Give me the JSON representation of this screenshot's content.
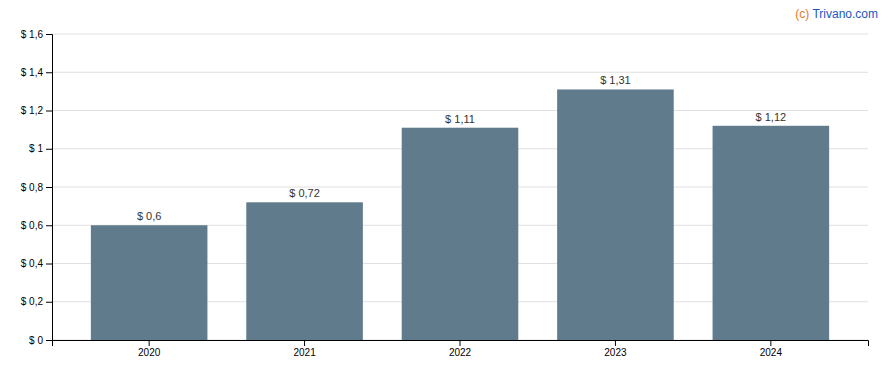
{
  "chart_data": {
    "type": "bar",
    "categories": [
      "2020",
      "2021",
      "2022",
      "2023",
      "2024"
    ],
    "values": [
      0.6,
      0.72,
      1.11,
      1.31,
      1.12
    ],
    "value_labels": [
      "$ 0,6",
      "$ 0,72",
      "$ 1,11",
      "$ 1,31",
      "$ 1,12"
    ],
    "color": "#5f7b8c",
    "ylim": [
      0,
      1.6
    ],
    "yticks": [
      {
        "value": 0,
        "label": "$ 0"
      },
      {
        "value": 0.2,
        "label": "$ 0,2"
      },
      {
        "value": 0.4,
        "label": "$ 0,4"
      },
      {
        "value": 0.6,
        "label": "$ 0,6"
      },
      {
        "value": 0.8,
        "label": "$ 0,8"
      },
      {
        "value": 1.0,
        "label": "$ 1"
      },
      {
        "value": 1.2,
        "label": "$ 1,2"
      },
      {
        "value": 1.4,
        "label": "$ 1,4"
      },
      {
        "value": 1.6,
        "label": "$ 1,6"
      }
    ],
    "grid": true,
    "data_labels": true,
    "annotations": [
      {
        "text": "(c)",
        "color": "#e87722"
      },
      {
        "text": " Trivano.com",
        "color": "#1a56c4"
      }
    ]
  }
}
